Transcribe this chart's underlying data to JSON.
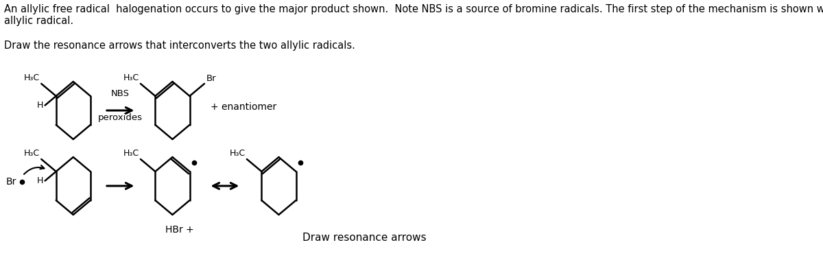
{
  "bg_color": "#ffffff",
  "text_color": "#000000",
  "header_text": "An allylic free radical  halogenation occurs to give the major product shown.  Note NBS is a source of bromine radicals. The first step of the mechanism is shown which forms an\nallylic radical.",
  "subheader_text": "Draw the resonance arrows that interconverts the two allylic radicals.",
  "bottom_label": "Draw resonance arrows",
  "font_size_header": 10.5,
  "font_size_sub": 10.5,
  "font_size_label": 11,
  "line_color": "#000000",
  "line_width": 1.8,
  "arrow_color": "#000000"
}
